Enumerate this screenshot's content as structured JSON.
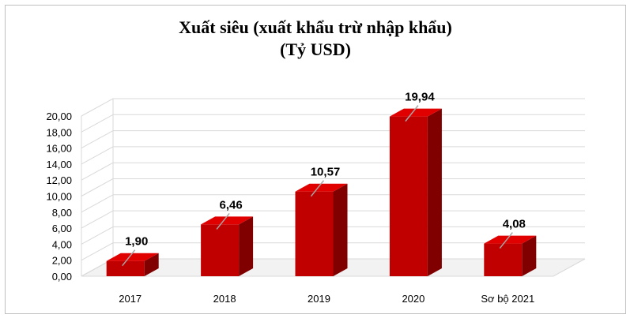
{
  "chart_data": {
    "type": "bar",
    "title_line1": "Xuất siêu (xuất khẩu trừ nhập khẩu)",
    "title_line2": "(Tỷ USD)",
    "categories": [
      "2017",
      "2018",
      "2019",
      "2020",
      "Sơ bộ 2021"
    ],
    "values": [
      1.9,
      6.46,
      10.57,
      19.94,
      4.08
    ],
    "data_labels": [
      "1,90",
      "6,46",
      "10,57",
      "19,94",
      "4,08"
    ],
    "yticks": [
      0,
      2,
      4,
      6,
      8,
      10,
      12,
      14,
      16,
      18,
      20
    ],
    "ytick_labels": [
      "0,00",
      "2,00",
      "4,00",
      "6,00",
      "8,00",
      "10,00",
      "12,00",
      "14,00",
      "16,00",
      "18,00",
      "20,00"
    ],
    "ylim": [
      0,
      20
    ],
    "grid": true,
    "style": "3d-column",
    "colors": {
      "bar_front": "#c00000",
      "bar_top": "#e00000",
      "bar_side": "#800000",
      "grid": "#d9d9d9",
      "wall": "#ffffff"
    }
  }
}
